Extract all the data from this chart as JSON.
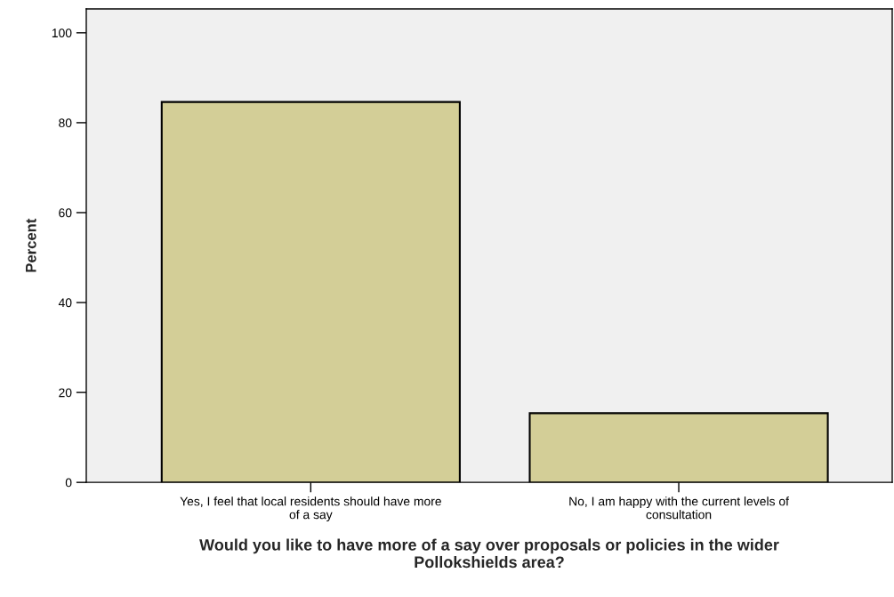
{
  "chart_data": {
    "type": "bar",
    "xlabel": "Would you like to have more of a say over proposals or policies in the wider\nPollokshields area?",
    "ylabel": "Percent",
    "categories": [
      "Yes, I feel that local residents should have more\nof a say",
      "No, I am happy with the current levels of\nconsultation"
    ],
    "values": [
      84.6,
      15.4
    ],
    "color": "#d3ce97",
    "ylim": [
      0,
      105.3
    ],
    "yticks": [
      0,
      20,
      40,
      60,
      80,
      100
    ],
    "grid": false,
    "legend": false
  }
}
